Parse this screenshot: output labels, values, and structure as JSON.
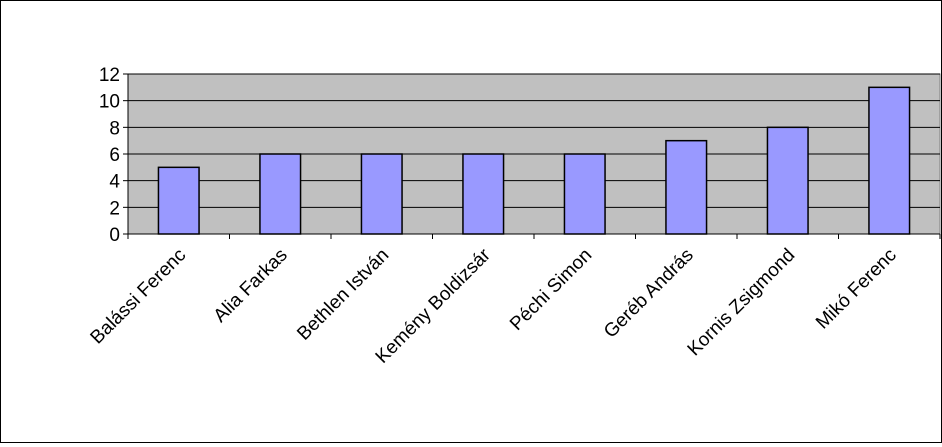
{
  "chart_data": {
    "type": "bar",
    "categories": [
      "Balássi Ferenc",
      "Alia Farkas",
      "Bethlen István",
      "Kemény Boldizsár",
      "Péchi Simon",
      "Geréb András",
      "Kornis Zsigmond",
      "Mikó Ferenc"
    ],
    "values": [
      5,
      6,
      6,
      6,
      6,
      7,
      8,
      11
    ],
    "ylim": [
      0,
      12
    ],
    "yticks": [
      0,
      2,
      4,
      6,
      8,
      10,
      12
    ],
    "title": "",
    "xlabel": "",
    "ylabel": "",
    "grid": true,
    "legend": "none",
    "colors": {
      "plot_background": "#c0c0c0",
      "bar_fill": "#9999ff",
      "bar_stroke": "#000000",
      "gridline": "#000000"
    }
  }
}
